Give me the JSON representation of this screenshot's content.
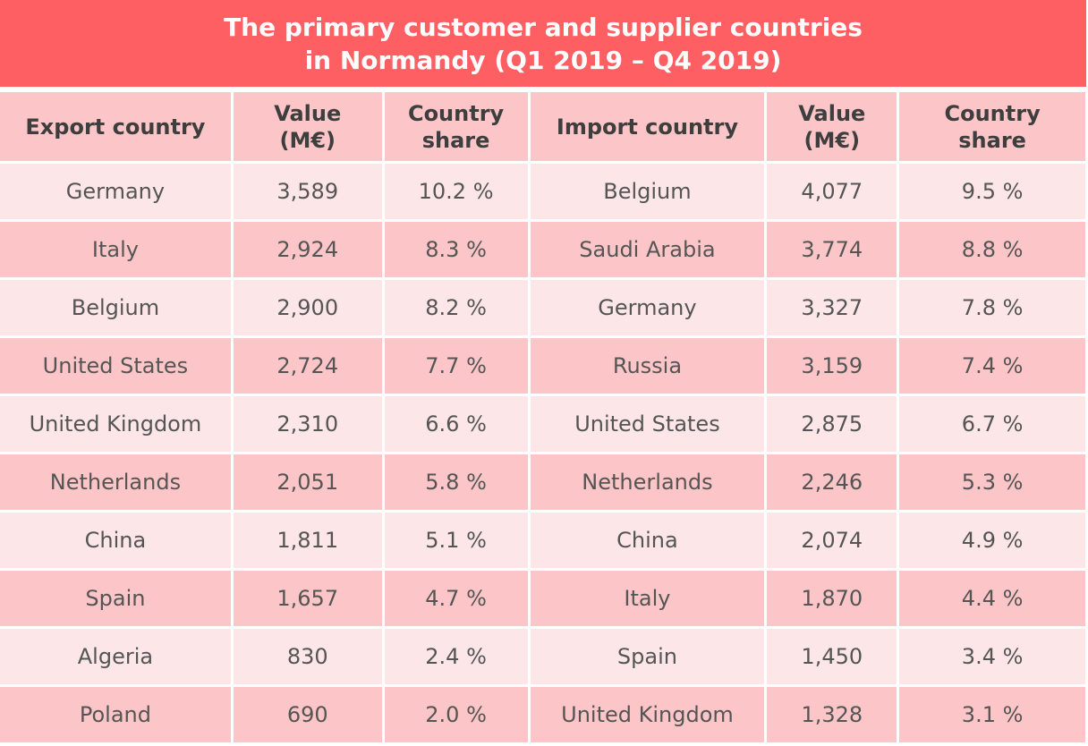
{
  "chart_data": {
    "type": "table",
    "title_lines": [
      "The primary customer and supplier countries",
      "in Normandy (Q1 2019 – Q4 2019)"
    ],
    "columns": [
      {
        "line1": "Export country",
        "line2": ""
      },
      {
        "line1": "Value",
        "line2": "(M€)"
      },
      {
        "line1": "Country",
        "line2": "share"
      },
      {
        "line1": "Import country",
        "line2": ""
      },
      {
        "line1": "Value",
        "line2": "(M€)"
      },
      {
        "line1": "Country",
        "line2": "share"
      }
    ],
    "rows": [
      [
        "Germany",
        "3,589",
        "10.2 %",
        "Belgium",
        "4,077",
        "9.5 %"
      ],
      [
        "Italy",
        "2,924",
        "8.3 %",
        "Saudi Arabia",
        "3,774",
        "8.8 %"
      ],
      [
        "Belgium",
        "2,900",
        "8.2 %",
        "Germany",
        "3,327",
        "7.8 %"
      ],
      [
        "United States",
        "2,724",
        "7.7 %",
        "Russia",
        "3,159",
        "7.4 %"
      ],
      [
        "United Kingdom",
        "2,310",
        "6.6 %",
        "United States",
        "2,875",
        "6.7 %"
      ],
      [
        "Netherlands",
        "2,051",
        "5.8 %",
        "Netherlands",
        "2,246",
        "5.3 %"
      ],
      [
        "China",
        "1,811",
        "5.1 %",
        "China",
        "2,074",
        "4.9 %"
      ],
      [
        "Spain",
        "1,657",
        "4.7 %",
        "Italy",
        "1,870",
        "4.4 %"
      ],
      [
        "Algeria",
        "830",
        "2.4 %",
        "Spain",
        "1,450",
        "3.4 %"
      ],
      [
        "Poland",
        "690",
        "2.0 %",
        "United Kingdom",
        "1,328",
        "3.1 %"
      ]
    ],
    "colors": {
      "title_background": "#fd5f63",
      "title_text": "#ffffff",
      "header_background": "#fcc6c8",
      "row_light": "#fde6e7",
      "row_dark": "#fcc6c8",
      "header_text": "#3e3e3e",
      "cell_text": "#555555"
    }
  }
}
